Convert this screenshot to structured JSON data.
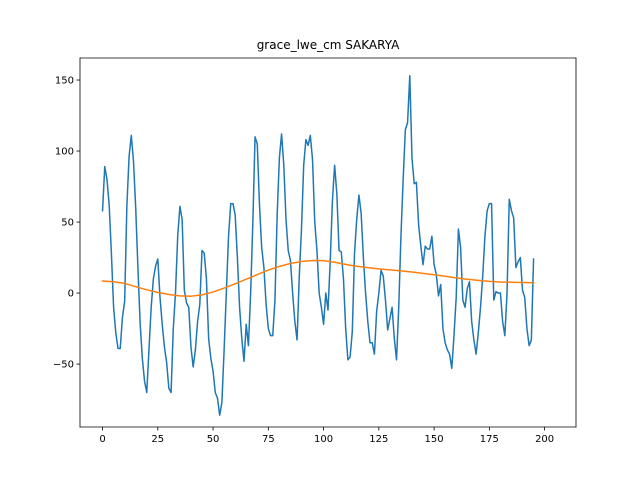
{
  "chart_data": {
    "type": "line",
    "title": "grace_lwe_cm SAKARYA",
    "xlabel": "",
    "ylabel": "",
    "xlim": [
      -10.2,
      214.2
    ],
    "ylim": [
      -94.3,
      165.5
    ],
    "xticks": [
      0,
      25,
      50,
      75,
      100,
      125,
      150,
      175,
      200
    ],
    "yticks": [
      -50,
      0,
      50,
      100,
      150
    ],
    "grid": false,
    "series": [
      {
        "color": "#1f77b4",
        "points": [
          [
            0,
            58
          ],
          [
            1,
            89
          ],
          [
            2,
            80
          ],
          [
            3,
            62
          ],
          [
            4,
            28
          ],
          [
            5,
            -10
          ],
          [
            6,
            -28
          ],
          [
            7,
            -39
          ],
          [
            8,
            -39
          ],
          [
            9,
            -17
          ],
          [
            10,
            -6
          ],
          [
            11,
            61
          ],
          [
            12,
            96
          ],
          [
            13,
            111
          ],
          [
            14,
            93
          ],
          [
            15,
            60
          ],
          [
            16,
            18
          ],
          [
            17,
            -21
          ],
          [
            18,
            -46
          ],
          [
            19,
            -62
          ],
          [
            20,
            -70
          ],
          [
            21,
            -40
          ],
          [
            22,
            -10
          ],
          [
            23,
            10
          ],
          [
            24,
            19
          ],
          [
            25,
            24
          ],
          [
            26,
            -3
          ],
          [
            27,
            -22
          ],
          [
            28,
            -38
          ],
          [
            29,
            -49
          ],
          [
            30,
            -67
          ],
          [
            31,
            -70
          ],
          [
            32,
            -25
          ],
          [
            33,
            0
          ],
          [
            34,
            40
          ],
          [
            35,
            61
          ],
          [
            36,
            52
          ],
          [
            37,
            2
          ],
          [
            38,
            -7
          ],
          [
            39,
            -10
          ],
          [
            40,
            -38
          ],
          [
            41,
            -52
          ],
          [
            42,
            -40
          ],
          [
            43,
            -20
          ],
          [
            44,
            -8
          ],
          [
            45,
            30
          ],
          [
            46,
            28
          ],
          [
            47,
            10
          ],
          [
            48,
            -32
          ],
          [
            49,
            -46
          ],
          [
            50,
            -55
          ],
          [
            51,
            -70
          ],
          [
            52,
            -74
          ],
          [
            53,
            -86
          ],
          [
            54,
            -77
          ],
          [
            55,
            -40
          ],
          [
            56,
            0
          ],
          [
            57,
            40
          ],
          [
            58,
            63
          ],
          [
            59,
            63
          ],
          [
            60,
            55
          ],
          [
            61,
            25
          ],
          [
            62,
            -10
          ],
          [
            63,
            -32
          ],
          [
            64,
            -48
          ],
          [
            65,
            -22
          ],
          [
            66,
            -37
          ],
          [
            67,
            0
          ],
          [
            68,
            50
          ],
          [
            69,
            110
          ],
          [
            70,
            105
          ],
          [
            71,
            62
          ],
          [
            72,
            32
          ],
          [
            73,
            18
          ],
          [
            74,
            -8
          ],
          [
            75,
            -25
          ],
          [
            76,
            -30
          ],
          [
            77,
            -30
          ],
          [
            78,
            -5
          ],
          [
            79,
            55
          ],
          [
            80,
            95
          ],
          [
            81,
            112
          ],
          [
            82,
            90
          ],
          [
            83,
            52
          ],
          [
            84,
            30
          ],
          [
            85,
            23
          ],
          [
            86,
            0
          ],
          [
            87,
            -20
          ],
          [
            88,
            -33
          ],
          [
            89,
            12
          ],
          [
            90,
            45
          ],
          [
            91,
            90
          ],
          [
            92,
            108
          ],
          [
            93,
            104
          ],
          [
            94,
            111
          ],
          [
            95,
            94
          ],
          [
            96,
            50
          ],
          [
            97,
            30
          ],
          [
            98,
            0
          ],
          [
            99,
            -10
          ],
          [
            100,
            -22
          ],
          [
            101,
            0
          ],
          [
            102,
            -12
          ],
          [
            103,
            22
          ],
          [
            104,
            65
          ],
          [
            105,
            90
          ],
          [
            106,
            70
          ],
          [
            107,
            30
          ],
          [
            108,
            29
          ],
          [
            109,
            10
          ],
          [
            110,
            -25
          ],
          [
            111,
            -47
          ],
          [
            112,
            -45
          ],
          [
            113,
            -27
          ],
          [
            114,
            28
          ],
          [
            115,
            52
          ],
          [
            116,
            69
          ],
          [
            117,
            56
          ],
          [
            118,
            25
          ],
          [
            119,
            0
          ],
          [
            120,
            -20
          ],
          [
            121,
            -35
          ],
          [
            122,
            -35
          ],
          [
            123,
            -43
          ],
          [
            124,
            -13
          ],
          [
            125,
            0
          ],
          [
            126,
            16
          ],
          [
            127,
            12
          ],
          [
            128,
            -5
          ],
          [
            129,
            -26
          ],
          [
            130,
            -18
          ],
          [
            131,
            -10
          ],
          [
            132,
            -32
          ],
          [
            133,
            -47
          ],
          [
            134,
            -10
          ],
          [
            135,
            40
          ],
          [
            136,
            80
          ],
          [
            137,
            115
          ],
          [
            138,
            120
          ],
          [
            139,
            153
          ],
          [
            140,
            95
          ],
          [
            141,
            77
          ],
          [
            142,
            78
          ],
          [
            143,
            48
          ],
          [
            144,
            33
          ],
          [
            145,
            20
          ],
          [
            146,
            33
          ],
          [
            147,
            31
          ],
          [
            148,
            31
          ],
          [
            149,
            40
          ],
          [
            150,
            20
          ],
          [
            151,
            13
          ],
          [
            152,
            -2
          ],
          [
            153,
            6
          ],
          [
            154,
            -25
          ],
          [
            155,
            -35
          ],
          [
            156,
            -40
          ],
          [
            157,
            -43
          ],
          [
            158,
            -53
          ],
          [
            159,
            -30
          ],
          [
            160,
            -3
          ],
          [
            161,
            45
          ],
          [
            162,
            32
          ],
          [
            163,
            -5
          ],
          [
            164,
            -10
          ],
          [
            165,
            3
          ],
          [
            166,
            8
          ],
          [
            167,
            -20
          ],
          [
            168,
            -33
          ],
          [
            169,
            -43
          ],
          [
            170,
            -28
          ],
          [
            171,
            -10
          ],
          [
            172,
            12
          ],
          [
            173,
            40
          ],
          [
            174,
            58
          ],
          [
            175,
            63
          ],
          [
            176,
            63
          ],
          [
            177,
            -5
          ],
          [
            178,
            1
          ],
          [
            179,
            0
          ],
          [
            180,
            0
          ],
          [
            181,
            -20
          ],
          [
            182,
            -30
          ],
          [
            183,
            0
          ],
          [
            184,
            66
          ],
          [
            185,
            58
          ],
          [
            186,
            53
          ],
          [
            187,
            18
          ],
          [
            188,
            22
          ],
          [
            189,
            25
          ],
          [
            190,
            2
          ],
          [
            191,
            -3
          ],
          [
            192,
            -25
          ],
          [
            193,
            -37
          ],
          [
            194,
            -33
          ],
          [
            195,
            24
          ]
        ]
      },
      {
        "color": "#ff7f0e",
        "points": [
          [
            0,
            8.5
          ],
          [
            5,
            8.0
          ],
          [
            10,
            6.8
          ],
          [
            15,
            4.5
          ],
          [
            20,
            2.3
          ],
          [
            25,
            0.5
          ],
          [
            30,
            -1.0
          ],
          [
            35,
            -2.0
          ],
          [
            40,
            -2.2
          ],
          [
            45,
            -1.3
          ],
          [
            50,
            0.7
          ],
          [
            55,
            3.5
          ],
          [
            60,
            6.5
          ],
          [
            65,
            9.8
          ],
          [
            70,
            13.0
          ],
          [
            75,
            16.2
          ],
          [
            80,
            18.8
          ],
          [
            85,
            20.8
          ],
          [
            90,
            22.2
          ],
          [
            95,
            22.9
          ],
          [
            100,
            22.8
          ],
          [
            105,
            21.7
          ],
          [
            110,
            20.1
          ],
          [
            115,
            18.9
          ],
          [
            120,
            17.9
          ],
          [
            125,
            17.0
          ],
          [
            130,
            16.3
          ],
          [
            135,
            15.6
          ],
          [
            140,
            14.8
          ],
          [
            145,
            13.9
          ],
          [
            150,
            12.9
          ],
          [
            155,
            11.8
          ],
          [
            160,
            10.7
          ],
          [
            165,
            9.7
          ],
          [
            170,
            8.9
          ],
          [
            175,
            8.2
          ],
          [
            180,
            7.8
          ],
          [
            185,
            7.6
          ],
          [
            190,
            7.4
          ],
          [
            195,
            7.3
          ]
        ]
      }
    ]
  }
}
